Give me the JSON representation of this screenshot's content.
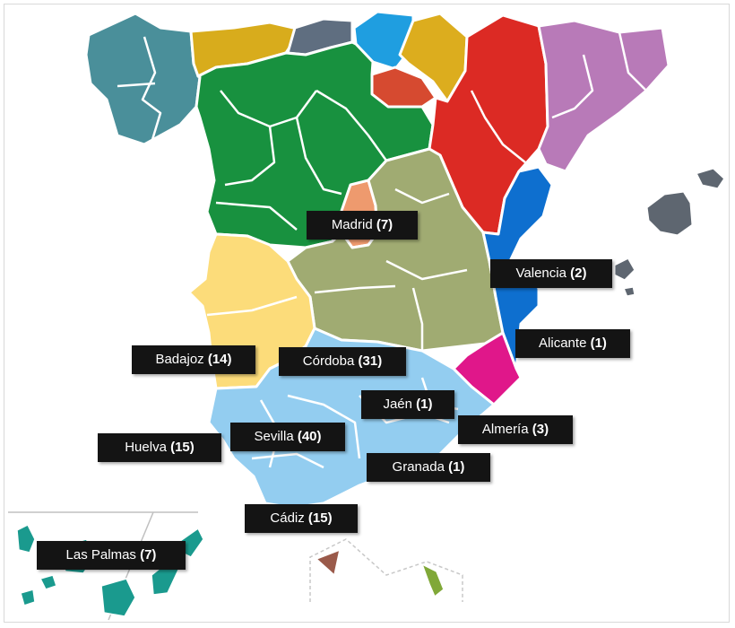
{
  "labels": {
    "madrid": {
      "name": "Madrid",
      "count": "(7)"
    },
    "valencia": {
      "name": "Valencia",
      "count": "(2)"
    },
    "alicante": {
      "name": "Alicante",
      "count": "(1)"
    },
    "badajoz": {
      "name": "Badajoz",
      "count": "(14)"
    },
    "cordoba": {
      "name": "Córdoba",
      "count": "(31)"
    },
    "jaen": {
      "name": "Jaén",
      "count": "(1)"
    },
    "almeria": {
      "name": "Almería",
      "count": "(3)"
    },
    "huelva": {
      "name": "Huelva",
      "count": "(15)"
    },
    "sevilla": {
      "name": "Sevilla",
      "count": "(40)"
    },
    "granada": {
      "name": "Granada",
      "count": "(1)"
    },
    "cadiz": {
      "name": "Cádiz",
      "count": "(15)"
    },
    "las_palmas": {
      "name": "Las Palmas",
      "count": "(7)"
    }
  },
  "colors": {
    "galicia": "#4a8f9a",
    "asturias": "#d8ac1c",
    "cantabria": "#5f6e80",
    "basque": "#1f9ee0",
    "navarra": "#dcad1e",
    "castilla_leon": "#18913f",
    "la_rioja": "#d64a30",
    "aragon": "#dc2a24",
    "catalonia": "#b87ab8",
    "madrid": "#ee9a6e",
    "castilla_mancha": "#a0ab72",
    "valencia": "#0e6fcf",
    "murcia": "#e0178a",
    "extremadura": "#fcdc7a",
    "andalusia": "#93cdf0",
    "baleares": "#5e6670",
    "canarias": "#1a9a8e",
    "ceuta": "#9a5a4a",
    "melilla": "#80a838"
  }
}
